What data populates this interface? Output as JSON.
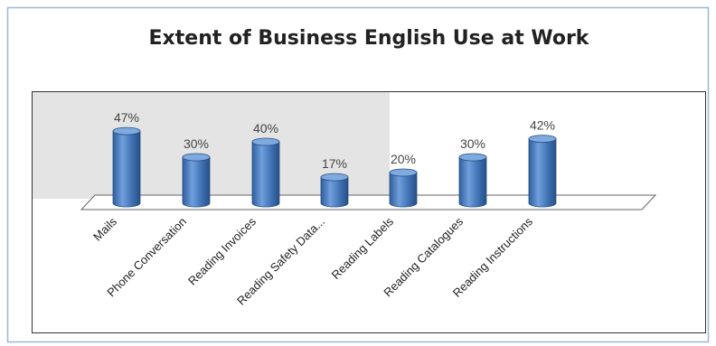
{
  "chart_data": {
    "type": "bar",
    "title": "Extent of Business English Use at Work",
    "categories": [
      "Mails",
      "Phone Conversation",
      "Reading Invoices",
      "Reading Safety Data...",
      "Reading Labels",
      "Reading Catalogues",
      "Reading Instructions"
    ],
    "values": [
      47,
      30,
      40,
      17,
      20,
      30,
      42
    ],
    "data_labels": [
      "47%",
      "30%",
      "40%",
      "17%",
      "20%",
      "30%",
      "42%"
    ],
    "ylim": [
      0,
      50
    ],
    "bar_color": "#4a7ebb",
    "legend": "none",
    "grid": false
  }
}
